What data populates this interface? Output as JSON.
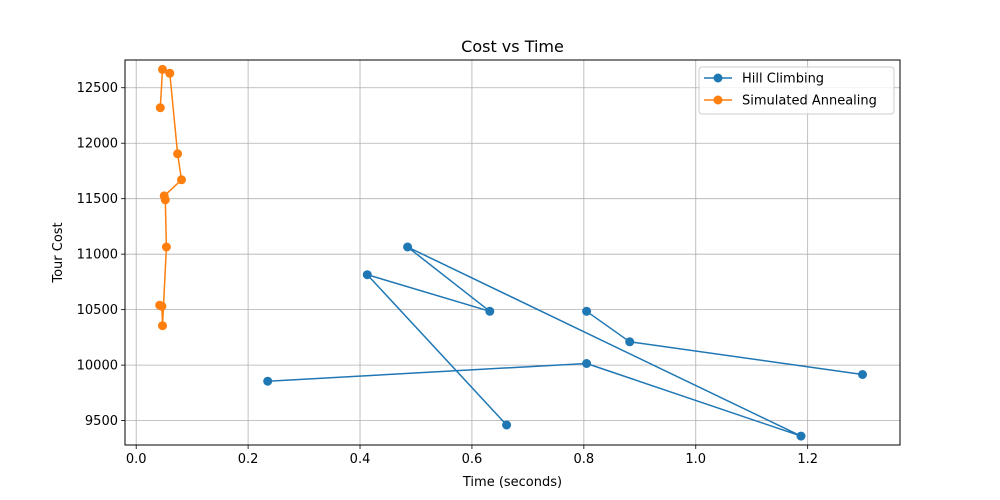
{
  "chart_data": {
    "type": "line",
    "title": "Cost vs Time",
    "xlabel": "Time (seconds)",
    "ylabel": "Tour Cost",
    "xlim": [
      -0.02,
      1.365
    ],
    "ylim": [
      9280,
      12750
    ],
    "xticks": [
      0.0,
      0.2,
      0.4,
      0.6,
      0.8,
      1.0,
      1.2
    ],
    "xtick_labels": [
      "0.0",
      "0.2",
      "0.4",
      "0.6",
      "0.8",
      "1.0",
      "1.2"
    ],
    "yticks": [
      9500,
      10000,
      10500,
      11000,
      11500,
      12000,
      12500
    ],
    "ytick_labels": [
      "9500",
      "10000",
      "10500",
      "11000",
      "11500",
      "12000",
      "12500"
    ],
    "grid": true,
    "legend_position": "top-right",
    "series": [
      {
        "name": "Hill Climbing",
        "color": "#1f77b4",
        "marker": "circle",
        "x": [
          0.235,
          0.805,
          1.188,
          0.485,
          0.632,
          0.413,
          0.662
        ],
        "y": [
          9855,
          10015,
          9360,
          11065,
          10485,
          10815,
          9460
        ],
        "x2": [
          0.805,
          0.882,
          1.298
        ],
        "y2": [
          10485,
          10210,
          9915
        ]
      },
      {
        "name": "Simulated Annealing",
        "color": "#ff7f0e",
        "marker": "circle",
        "x": [
          0.043,
          0.047,
          0.06,
          0.074,
          0.081,
          0.05,
          0.052,
          0.054,
          0.047,
          0.046,
          0.042
        ],
        "y": [
          12320,
          12665,
          12630,
          11905,
          11670,
          11525,
          11490,
          11065,
          10355,
          10530,
          10540
        ]
      }
    ]
  }
}
